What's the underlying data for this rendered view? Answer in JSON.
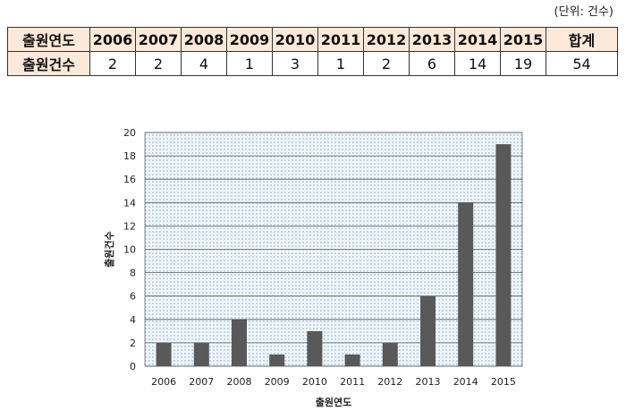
{
  "unit_note": "(단위: 건수)",
  "table": {
    "header_label": "출원연도",
    "years": [
      "2006",
      "2007",
      "2008",
      "2009",
      "2010",
      "2011",
      "2012",
      "2013",
      "2014",
      "2015"
    ],
    "total_label": "합계",
    "row_label": "출원건수",
    "counts": [
      "2",
      "2",
      "4",
      "1",
      "3",
      "1",
      "2",
      "6",
      "14",
      "19"
    ],
    "total": "54"
  },
  "chart_data": {
    "type": "bar",
    "categories": [
      "2006",
      "2007",
      "2008",
      "2009",
      "2010",
      "2011",
      "2012",
      "2013",
      "2014",
      "2015"
    ],
    "values": [
      2,
      2,
      4,
      1,
      3,
      1,
      2,
      6,
      14,
      19
    ],
    "title": "",
    "xlabel": "출원연도",
    "ylabel": "출원건수",
    "ylim": [
      0,
      20
    ],
    "yticks": [
      "0",
      "2",
      "4",
      "6",
      "8",
      "10",
      "12",
      "14",
      "16",
      "18",
      "20"
    ],
    "grid": true,
    "plot_background": "dotted light blue",
    "bar_color": "#595959",
    "legend": "none"
  }
}
